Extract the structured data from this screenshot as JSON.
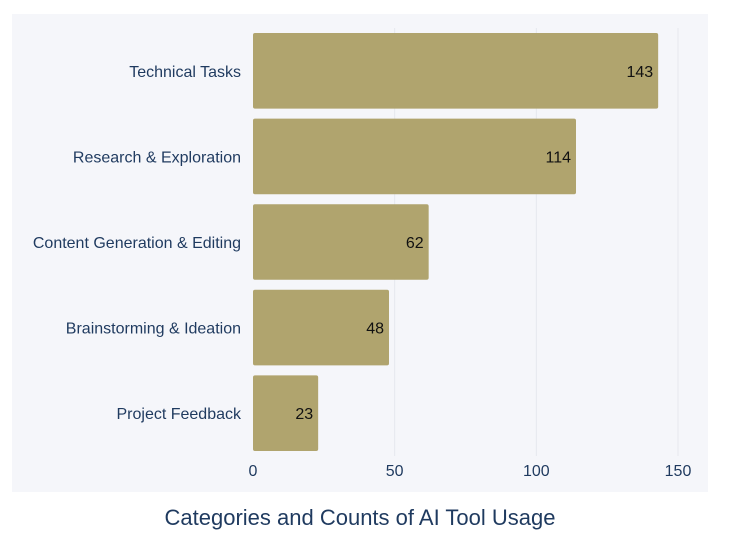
{
  "chart_data": {
    "type": "bar",
    "orientation": "horizontal",
    "title": "Categories and Counts of AI Tool Usage",
    "xlabel": "",
    "ylabel": "",
    "categories": [
      "Technical Tasks",
      "Research & Exploration",
      "Content Generation & Editing",
      "Brainstorming & Ideation",
      "Project Feedback"
    ],
    "values": [
      143,
      114,
      62,
      48,
      23
    ],
    "xlim": [
      0,
      150
    ],
    "xticks": [
      0,
      50,
      100,
      150
    ],
    "grid": true,
    "data_labels": true,
    "colors": {
      "bar": "#b0a46e",
      "plot_background": "#f5f6fa",
      "gridline": "#e6e8ef",
      "text": "#1f3a5f",
      "value_text": "#111111"
    }
  }
}
